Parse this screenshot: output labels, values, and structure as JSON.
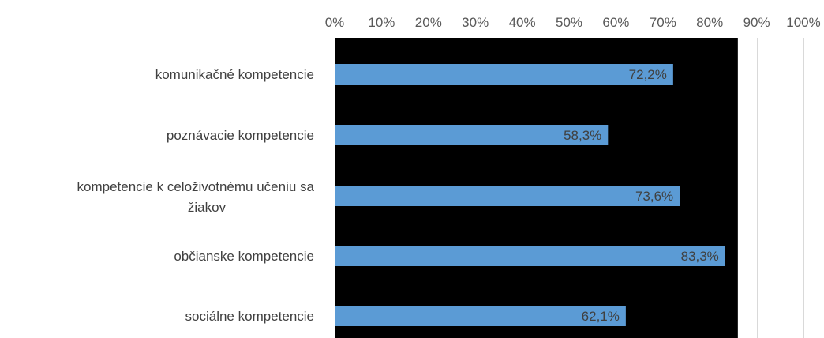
{
  "chart_data": {
    "type": "bar",
    "orientation": "horizontal",
    "categories": [
      "komunikačné kompetencie",
      "poznávacie kompetencie",
      "kompetencie k celoživotnému učeniu sa žiakov",
      "občianske kompetencie",
      "sociálne kompetencie"
    ],
    "category_lines": [
      [
        "komunikačné kompetencie"
      ],
      [
        "poznávacie kompetencie"
      ],
      [
        "kompetencie k celoživotnému učeniu sa",
        "žiakov"
      ],
      [
        "občianske kompetencie"
      ],
      [
        "sociálne kompetencie"
      ]
    ],
    "values": [
      72.2,
      58.3,
      73.6,
      83.3,
      62.1
    ],
    "data_labels": [
      "72,2%",
      "58,3%",
      "73,6%",
      "83,3%",
      "62,1%"
    ],
    "x_ticks": [
      "0%",
      "10%",
      "20%",
      "30%",
      "40%",
      "50%",
      "60%",
      "70%",
      "80%",
      "90%",
      "100%"
    ],
    "xlim": [
      0,
      100
    ],
    "x_axis_position": "top",
    "grid": true,
    "bar_color": "#5B9BD5",
    "plot_background": "#000000",
    "plot_background_extent": 86,
    "gridline_color": "#D9D9D9",
    "title": "",
    "xlabel": "",
    "ylabel": ""
  }
}
